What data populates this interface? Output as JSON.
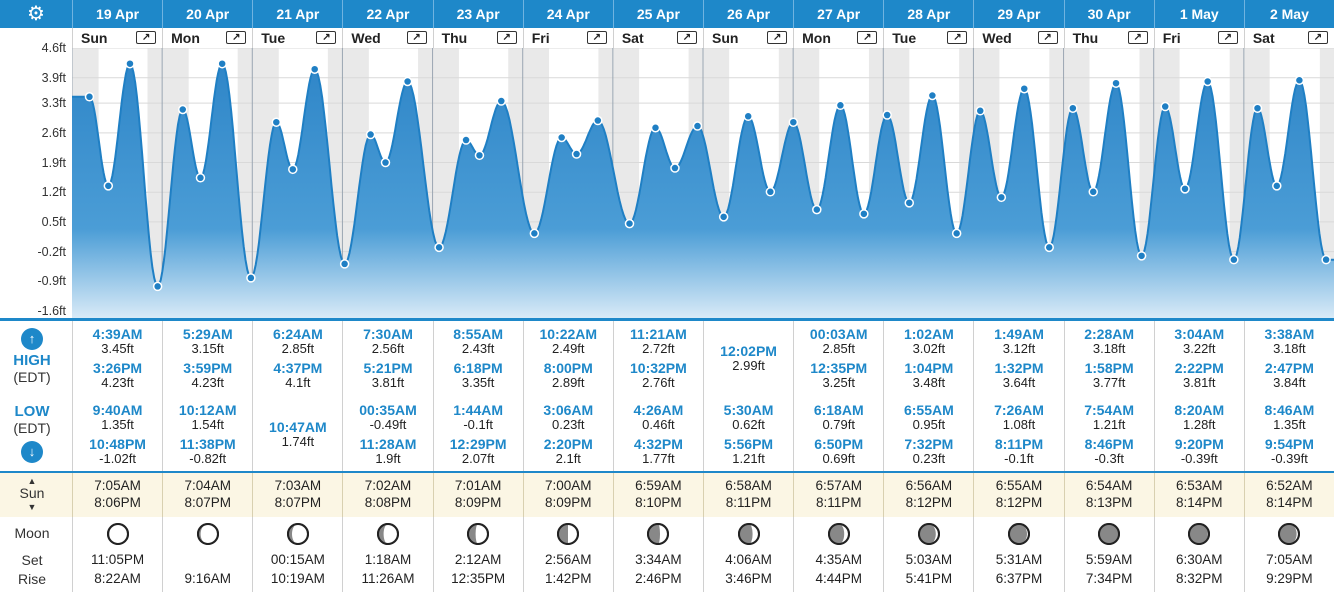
{
  "settings_icon": "gear-icon",
  "yaxis": {
    "ticks": [
      "4.6ft",
      "3.9ft",
      "3.3ft",
      "2.6ft",
      "1.9ft",
      "1.2ft",
      "0.5ft",
      "-0.2ft",
      "-0.9ft",
      "-1.6ft"
    ]
  },
  "labels": {
    "high": "HIGH",
    "high_tz": "(EDT)",
    "low": "LOW",
    "low_tz": "(EDT)",
    "sun": "Sun",
    "moon": "Moon",
    "set": "Set",
    "rise": "Rise"
  },
  "colors": {
    "accent": "#1e88c9",
    "tide_fill": "#3a92d0",
    "sun_bg": "#fbf6e4"
  },
  "days": [
    {
      "date": "19 Apr",
      "weekday": "Sun",
      "high": [
        {
          "time": "4:39AM",
          "height": "3.45ft"
        },
        {
          "time": "3:26PM",
          "height": "4.23ft"
        }
      ],
      "low": [
        {
          "time": "9:40AM",
          "height": "1.35ft"
        },
        {
          "time": "10:48PM",
          "height": "-1.02ft"
        }
      ],
      "sunrise": "7:05AM",
      "sunset": "8:06PM",
      "moon_set": "11:05PM",
      "moon_rise": "8:22AM",
      "moon_phase": 0.93
    },
    {
      "date": "20 Apr",
      "weekday": "Mon",
      "high": [
        {
          "time": "5:29AM",
          "height": "3.15ft"
        },
        {
          "time": "3:59PM",
          "height": "4.23ft"
        }
      ],
      "low": [
        {
          "time": "10:12AM",
          "height": "1.54ft"
        },
        {
          "time": "11:38PM",
          "height": "-0.82ft"
        }
      ],
      "sunrise": "7:04AM",
      "sunset": "8:07PM",
      "moon_set": "",
      "moon_rise": "9:16AM",
      "moon_phase": 0.87
    },
    {
      "date": "21 Apr",
      "weekday": "Tue",
      "high": [
        {
          "time": "6:24AM",
          "height": "2.85ft"
        },
        {
          "time": "4:37PM",
          "height": "4.1ft"
        }
      ],
      "low": [
        {
          "time": "10:47AM",
          "height": "1.74ft"
        }
      ],
      "sunrise": "7:03AM",
      "sunset": "8:07PM",
      "moon_set": "00:15AM",
      "moon_rise": "10:19AM",
      "moon_phase": 0.8
    },
    {
      "date": "22 Apr",
      "weekday": "Wed",
      "high": [
        {
          "time": "7:30AM",
          "height": "2.56ft"
        },
        {
          "time": "5:21PM",
          "height": "3.81ft"
        }
      ],
      "low": [
        {
          "time": "00:35AM",
          "height": "-0.49ft"
        },
        {
          "time": "11:28AM",
          "height": "1.9ft"
        }
      ],
      "sunrise": "7:02AM",
      "sunset": "8:08PM",
      "moon_set": "1:18AM",
      "moon_rise": "11:26AM",
      "moon_phase": 0.72
    },
    {
      "date": "23 Apr",
      "weekday": "Thu",
      "high": [
        {
          "time": "8:55AM",
          "height": "2.43ft"
        },
        {
          "time": "6:18PM",
          "height": "3.35ft"
        }
      ],
      "low": [
        {
          "time": "1:44AM",
          "height": "-0.1ft"
        },
        {
          "time": "12:29PM",
          "height": "2.07ft"
        }
      ],
      "sunrise": "7:01AM",
      "sunset": "8:09PM",
      "moon_set": "2:12AM",
      "moon_rise": "12:35PM",
      "moon_phase": 0.62
    },
    {
      "date": "24 Apr",
      "weekday": "Fri",
      "high": [
        {
          "time": "10:22AM",
          "height": "2.49ft"
        },
        {
          "time": "8:00PM",
          "height": "2.89ft"
        }
      ],
      "low": [
        {
          "time": "3:06AM",
          "height": "0.23ft"
        },
        {
          "time": "2:20PM",
          "height": "2.1ft"
        }
      ],
      "sunrise": "7:00AM",
      "sunset": "8:09PM",
      "moon_set": "2:56AM",
      "moon_rise": "1:42PM",
      "moon_phase": 0.5
    },
    {
      "date": "25 Apr",
      "weekday": "Sat",
      "high": [
        {
          "time": "11:21AM",
          "height": "2.72ft"
        },
        {
          "time": "10:32PM",
          "height": "2.76ft"
        }
      ],
      "low": [
        {
          "time": "4:26AM",
          "height": "0.46ft"
        },
        {
          "time": "4:32PM",
          "height": "1.77ft"
        }
      ],
      "sunrise": "6:59AM",
      "sunset": "8:10PM",
      "moon_set": "3:34AM",
      "moon_rise": "2:46PM",
      "moon_phase": 0.4
    },
    {
      "date": "26 Apr",
      "weekday": "Sun",
      "high": [
        {
          "time": "12:02PM",
          "height": "2.99ft"
        }
      ],
      "low": [
        {
          "time": "5:30AM",
          "height": "0.62ft"
        },
        {
          "time": "5:56PM",
          "height": "1.21ft"
        }
      ],
      "sunrise": "6:58AM",
      "sunset": "8:11PM",
      "moon_set": "4:06AM",
      "moon_rise": "3:46PM",
      "moon_phase": 0.32
    },
    {
      "date": "27 Apr",
      "weekday": "Mon",
      "high": [
        {
          "time": "00:03AM",
          "height": "2.85ft"
        },
        {
          "time": "12:35PM",
          "height": "3.25ft"
        }
      ],
      "low": [
        {
          "time": "6:18AM",
          "height": "0.79ft"
        },
        {
          "time": "6:50PM",
          "height": "0.69ft"
        }
      ],
      "sunrise": "6:57AM",
      "sunset": "8:11PM",
      "moon_set": "4:35AM",
      "moon_rise": "4:44PM",
      "moon_phase": 0.24
    },
    {
      "date": "28 Apr",
      "weekday": "Tue",
      "high": [
        {
          "time": "1:02AM",
          "height": "3.02ft"
        },
        {
          "time": "1:04PM",
          "height": "3.48ft"
        }
      ],
      "low": [
        {
          "time": "6:55AM",
          "height": "0.95ft"
        },
        {
          "time": "7:32PM",
          "height": "0.23ft"
        }
      ],
      "sunrise": "6:56AM",
      "sunset": "8:12PM",
      "moon_set": "5:03AM",
      "moon_rise": "5:41PM",
      "moon_phase": 0.16
    },
    {
      "date": "29 Apr",
      "weekday": "Wed",
      "high": [
        {
          "time": "1:49AM",
          "height": "3.12ft"
        },
        {
          "time": "1:32PM",
          "height": "3.64ft"
        }
      ],
      "low": [
        {
          "time": "7:26AM",
          "height": "1.08ft"
        },
        {
          "time": "8:11PM",
          "height": "-0.1ft"
        }
      ],
      "sunrise": "6:55AM",
      "sunset": "8:12PM",
      "moon_set": "5:31AM",
      "moon_rise": "6:37PM",
      "moon_phase": 0.1
    },
    {
      "date": "30 Apr",
      "weekday": "Thu",
      "high": [
        {
          "time": "2:28AM",
          "height": "3.18ft"
        },
        {
          "time": "1:58PM",
          "height": "3.77ft"
        }
      ],
      "low": [
        {
          "time": "7:54AM",
          "height": "1.21ft"
        },
        {
          "time": "8:46PM",
          "height": "-0.3ft"
        }
      ],
      "sunrise": "6:54AM",
      "sunset": "8:13PM",
      "moon_set": "5:59AM",
      "moon_rise": "7:34PM",
      "moon_phase": 0.04
    },
    {
      "date": "1 May",
      "weekday": "Fri",
      "high": [
        {
          "time": "3:04AM",
          "height": "3.22ft"
        },
        {
          "time": "2:22PM",
          "height": "3.81ft"
        }
      ],
      "low": [
        {
          "time": "8:20AM",
          "height": "1.28ft"
        },
        {
          "time": "9:20PM",
          "height": "-0.39ft"
        }
      ],
      "sunrise": "6:53AM",
      "sunset": "8:14PM",
      "moon_set": "6:30AM",
      "moon_rise": "8:32PM",
      "moon_phase": 0.06
    },
    {
      "date": "2 May",
      "weekday": "Sat",
      "high": [
        {
          "time": "3:38AM",
          "height": "3.18ft"
        },
        {
          "time": "2:47PM",
          "height": "3.84ft"
        }
      ],
      "low": [
        {
          "time": "8:46AM",
          "height": "1.35ft"
        },
        {
          "time": "9:54PM",
          "height": "-0.39ft"
        }
      ],
      "sunrise": "6:52AM",
      "sunset": "8:14PM",
      "moon_set": "7:05AM",
      "moon_rise": "9:29PM",
      "moon_phase": 0.12
    }
  ]
}
